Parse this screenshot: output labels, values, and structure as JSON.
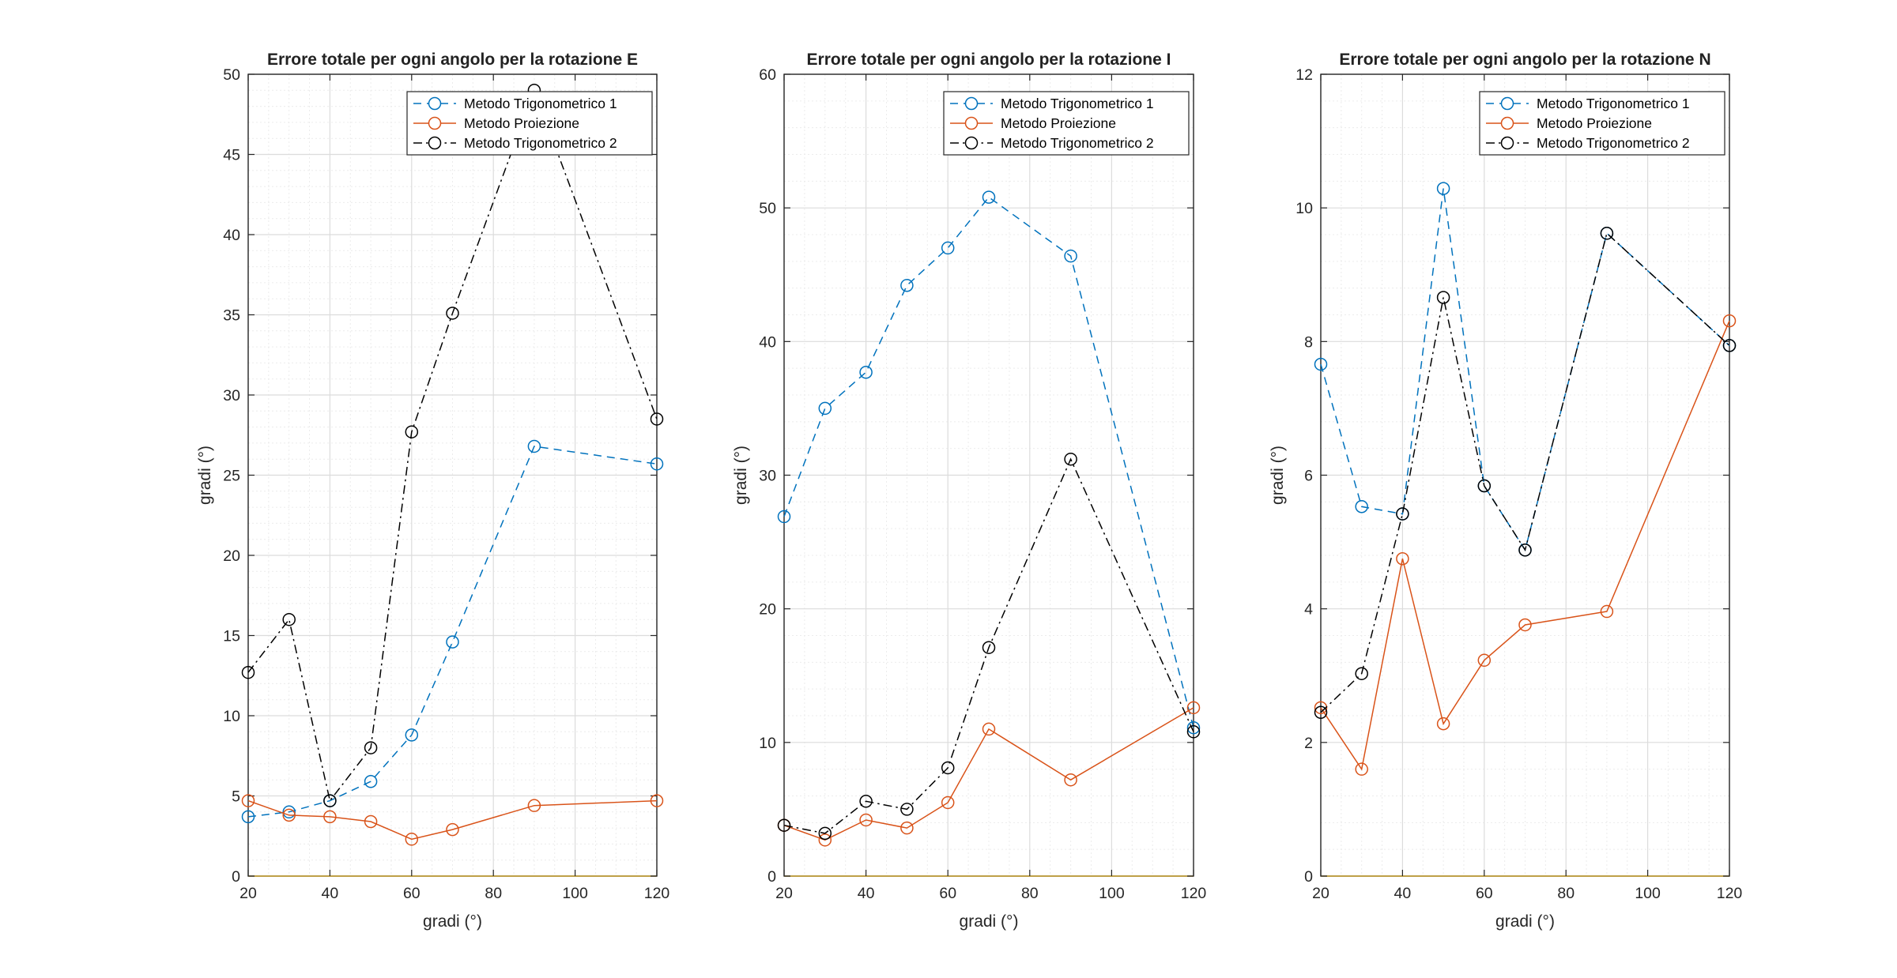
{
  "chart_data": [
    {
      "type": "line",
      "title": "Errore totale per ogni angolo per la rotazione E",
      "xlabel": "gradi (°)",
      "ylabel": "gradi (°)",
      "xlim": [
        20,
        120
      ],
      "ylim": [
        0,
        50
      ],
      "x_ticks": [
        20,
        40,
        60,
        80,
        100,
        120
      ],
      "y_ticks": [
        0,
        5,
        10,
        15,
        20,
        25,
        30,
        35,
        40,
        45,
        50
      ],
      "grid": true,
      "minor_grid": true,
      "legend_position": "top-right",
      "x": [
        20,
        30,
        40,
        50,
        60,
        70,
        90,
        120
      ],
      "series": [
        {
          "name": "Metodo Trigonometrico 1",
          "color": "#0072BD",
          "style": "dashed",
          "marker": "circle",
          "values": [
            3.7,
            4.0,
            4.7,
            5.9,
            8.8,
            14.6,
            26.8,
            25.7
          ]
        },
        {
          "name": "Metodo Proiezione",
          "color": "#D95319",
          "style": "solid",
          "marker": "circle",
          "values": [
            4.7,
            3.8,
            3.7,
            3.4,
            2.3,
            2.9,
            4.4,
            4.7
          ]
        },
        {
          "name": "Metodo Trigonometrico 2",
          "color": "#000000",
          "style": "dashdot",
          "marker": "circle",
          "values": [
            12.7,
            16.0,
            4.7,
            8.0,
            27.7,
            35.1,
            49.0,
            28.5
          ]
        }
      ]
    },
    {
      "type": "line",
      "title": "Errore totale per ogni angolo per la rotazione I",
      "xlabel": "gradi (°)",
      "ylabel": "gradi (°)",
      "xlim": [
        20,
        120
      ],
      "ylim": [
        0,
        60
      ],
      "x_ticks": [
        20,
        40,
        60,
        80,
        100,
        120
      ],
      "y_ticks": [
        0,
        10,
        20,
        30,
        40,
        50,
        60
      ],
      "grid": true,
      "minor_grid": true,
      "legend_position": "top-right",
      "x": [
        20,
        30,
        40,
        50,
        60,
        70,
        90,
        120
      ],
      "series": [
        {
          "name": "Metodo Trigonometrico 1",
          "color": "#0072BD",
          "style": "dashed",
          "marker": "circle",
          "values": [
            26.9,
            35.0,
            37.7,
            44.2,
            47.0,
            50.8,
            46.4,
            11.1
          ]
        },
        {
          "name": "Metodo Proiezione",
          "color": "#D95319",
          "style": "solid",
          "marker": "circle",
          "values": [
            3.8,
            2.7,
            4.2,
            3.6,
            5.5,
            11.0,
            7.2,
            12.6
          ]
        },
        {
          "name": "Metodo Trigonometrico 2",
          "color": "#000000",
          "style": "dashdot",
          "marker": "circle",
          "values": [
            3.8,
            3.2,
            5.6,
            5.0,
            8.1,
            17.1,
            31.2,
            10.8
          ]
        }
      ]
    },
    {
      "type": "line",
      "title": "Errore totale per ogni angolo per la rotazione N",
      "xlabel": "gradi (°)",
      "ylabel": "gradi (°)",
      "xlim": [
        20,
        120
      ],
      "ylim": [
        0,
        12
      ],
      "x_ticks": [
        20,
        40,
        60,
        80,
        100,
        120
      ],
      "y_ticks": [
        0,
        2,
        4,
        6,
        8,
        10,
        12
      ],
      "grid": true,
      "minor_grid": true,
      "legend_position": "top-right",
      "x": [
        20,
        30,
        40,
        50,
        60,
        70,
        90,
        120
      ],
      "series": [
        {
          "name": "Metodo Trigonometrico 1",
          "color": "#0072BD",
          "style": "dashed",
          "marker": "circle",
          "values": [
            7.66,
            5.53,
            5.42,
            10.29,
            5.84,
            4.88,
            9.62,
            7.94
          ]
        },
        {
          "name": "Metodo Proiezione",
          "color": "#D95319",
          "style": "solid",
          "marker": "circle",
          "values": [
            2.52,
            1.6,
            4.75,
            2.28,
            3.23,
            3.76,
            3.96,
            8.31
          ]
        },
        {
          "name": "Metodo Trigonometrico 2",
          "color": "#000000",
          "style": "dashdot",
          "marker": "circle",
          "values": [
            2.45,
            3.03,
            5.42,
            8.66,
            5.84,
            4.88,
            9.62,
            7.94
          ]
        }
      ]
    }
  ]
}
